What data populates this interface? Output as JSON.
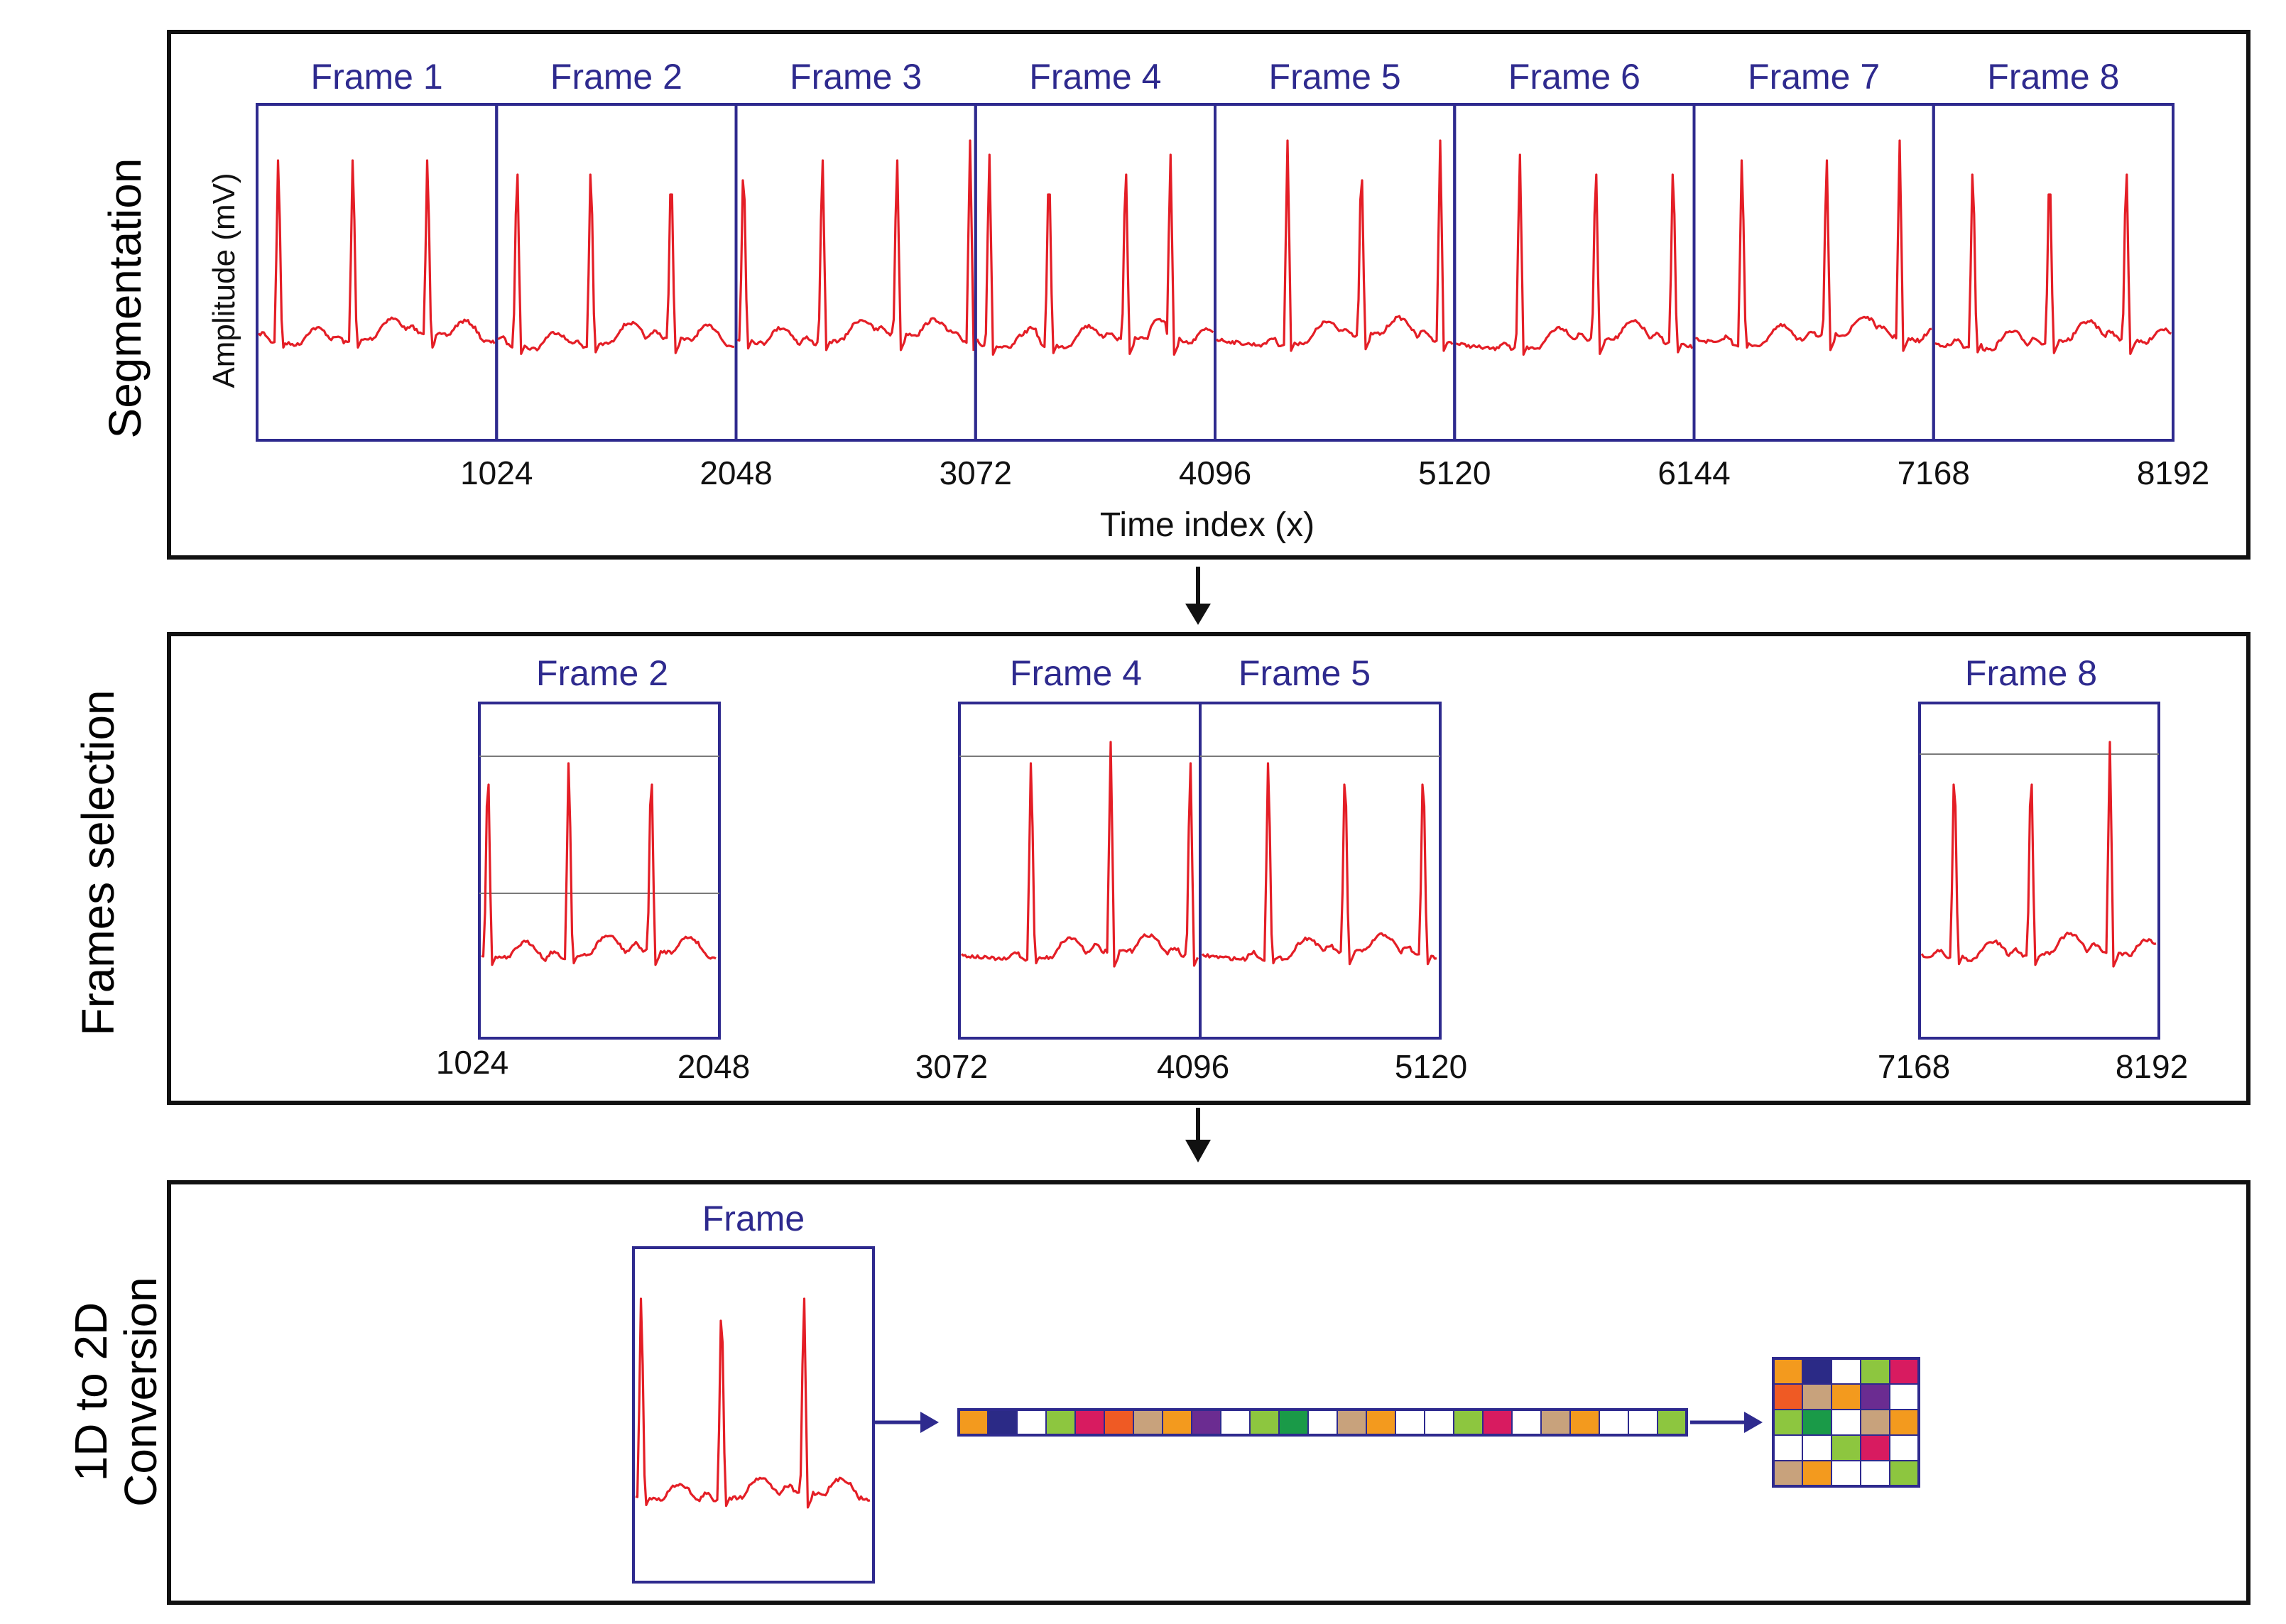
{
  "colors": {
    "frame_border": "#2e2a8e",
    "signal": "#e41e26",
    "panel_border": "#111111",
    "cell_palette": {
      "o": "#f39a1e",
      "n": "#2b2a86",
      "w": "#ffffff",
      "g": "#8dc63f",
      "m": "#d81b60",
      "r": "#ef5a24",
      "t": "#c8a27c",
      "p": "#6b2c91",
      "d": "#1a9a48"
    }
  },
  "panels": {
    "segmentation": {
      "title": "Segmentation",
      "y_axis_label": "Amplitude (mV)",
      "x_axis_label": "Time index (x)",
      "frames": [
        "Frame 1",
        "Frame 2",
        "Frame 3",
        "Frame 4",
        "Frame 5",
        "Frame 6",
        "Frame 7",
        "Frame 8"
      ],
      "ticks": [
        "1024",
        "2048",
        "3072",
        "4096",
        "5120",
        "6144",
        "7168",
        "8192"
      ]
    },
    "selection": {
      "title": "Frames selection",
      "frames": [
        "Frame 2",
        "Frame 4",
        "Frame 5",
        "Frame 8"
      ],
      "ticks": [
        "1024",
        "2048",
        "3072",
        "4096",
        "5120",
        "7168",
        "8192"
      ]
    },
    "conversion": {
      "title_line1": "1D to 2D",
      "title_line2": "Conversion",
      "frame_label": "Frame",
      "vector_cells": [
        "o",
        "n",
        "w",
        "g",
        "m",
        "r",
        "t",
        "o",
        "p",
        "w",
        "g",
        "d",
        "w",
        "t",
        "o",
        "w",
        "w",
        "g",
        "m",
        "w",
        "t",
        "o",
        "w",
        "w",
        "g"
      ],
      "matrix_rows": [
        [
          "o",
          "n",
          "w",
          "g",
          "m"
        ],
        [
          "r",
          "t",
          "o",
          "p",
          "w"
        ],
        [
          "g",
          "d",
          "w",
          "t",
          "o"
        ],
        [
          "w",
          "w",
          "g",
          "m",
          "w"
        ],
        [
          "t",
          "o",
          "w",
          "w",
          "g"
        ]
      ]
    }
  }
}
